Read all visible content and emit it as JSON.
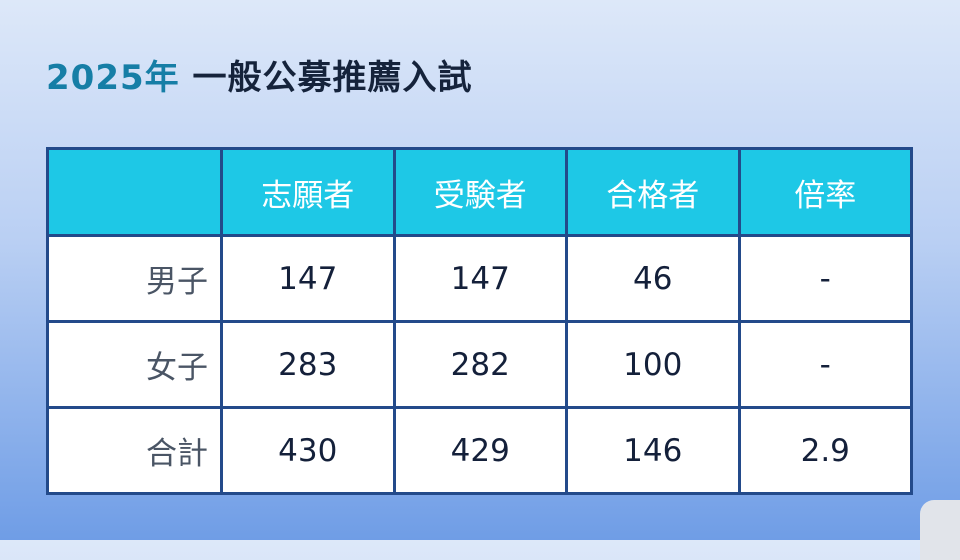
{
  "title": {
    "year": "2025年",
    "text": "一般公募推薦入試"
  },
  "table": {
    "headers": [
      "",
      "志願者",
      "受験者",
      "合格者",
      "倍率"
    ],
    "rows": [
      {
        "label": "男子",
        "values": [
          "147",
          "147",
          "46",
          "-"
        ]
      },
      {
        "label": "女子",
        "values": [
          "283",
          "282",
          "100",
          "-"
        ]
      },
      {
        "label": "合計",
        "values": [
          "430",
          "429",
          "146",
          "2.9"
        ]
      }
    ]
  },
  "colors": {
    "header": "#1ec8e6",
    "border": "#234a8a",
    "title_year": "#167ea6"
  }
}
